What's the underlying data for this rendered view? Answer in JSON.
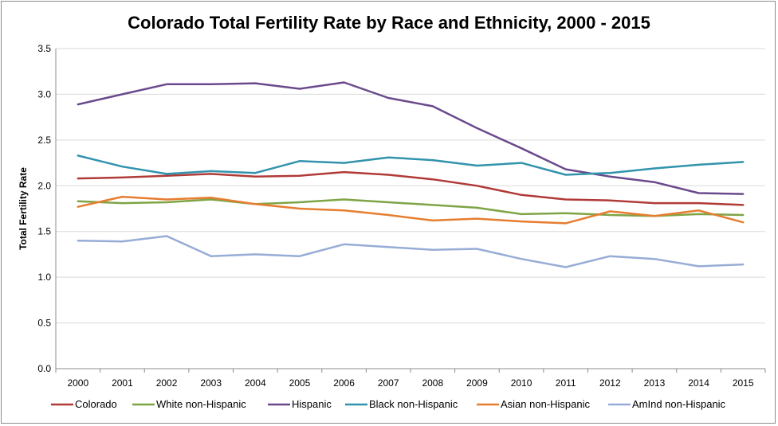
{
  "chart_data": {
    "type": "line",
    "title": "Colorado Total Fertility Rate by Race and Ethnicity, 2000 - 2015",
    "xlabel": "",
    "ylabel": "Total Fertility Rate",
    "ylim": [
      0,
      3.5
    ],
    "yticks": [
      "0.0",
      "0.5",
      "1.0",
      "1.5",
      "2.0",
      "2.5",
      "3.0",
      "3.5"
    ],
    "categories": [
      "2000",
      "2001",
      "2002",
      "2003",
      "2004",
      "2005",
      "2006",
      "2007",
      "2008",
      "2009",
      "2010",
      "2011",
      "2012",
      "2013",
      "2014",
      "2015"
    ],
    "grid": "horizontal",
    "legend_position": "bottom",
    "series": [
      {
        "name": "Colorado",
        "color": "#b03a37",
        "values": [
          2.08,
          2.09,
          2.11,
          2.13,
          2.1,
          2.11,
          2.15,
          2.12,
          2.07,
          2.0,
          1.9,
          1.85,
          1.84,
          1.81,
          1.81,
          1.79
        ]
      },
      {
        "name": "White non-Hispanic",
        "color": "#7ea445",
        "values": [
          1.83,
          1.81,
          1.82,
          1.85,
          1.8,
          1.82,
          1.85,
          1.82,
          1.79,
          1.76,
          1.69,
          1.7,
          1.68,
          1.67,
          1.69,
          1.68
        ]
      },
      {
        "name": "Hispanic",
        "color": "#6a4a8c",
        "values": [
          2.89,
          3.0,
          3.11,
          3.11,
          3.12,
          3.06,
          3.13,
          2.96,
          2.87,
          2.63,
          2.41,
          2.18,
          2.1,
          2.04,
          1.92,
          1.91
        ]
      },
      {
        "name": "Black non-Hispanic",
        "color": "#3293ac",
        "values": [
          2.33,
          2.21,
          2.13,
          2.16,
          2.14,
          2.27,
          2.25,
          2.31,
          2.28,
          2.22,
          2.25,
          2.12,
          2.14,
          2.19,
          2.23,
          2.26
        ]
      },
      {
        "name": "Asian non-Hispanic",
        "color": "#e67d30",
        "values": [
          1.77,
          1.88,
          1.85,
          1.87,
          1.8,
          1.75,
          1.73,
          1.68,
          1.62,
          1.64,
          1.61,
          1.59,
          1.72,
          1.67,
          1.73,
          1.6
        ]
      },
      {
        "name": "AmInd non-Hispanic",
        "color": "#97acd6",
        "values": [
          1.4,
          1.39,
          1.45,
          1.23,
          1.25,
          1.23,
          1.36,
          1.33,
          1.3,
          1.31,
          1.2,
          1.11,
          1.23,
          1.2,
          1.12,
          1.14
        ]
      }
    ]
  }
}
